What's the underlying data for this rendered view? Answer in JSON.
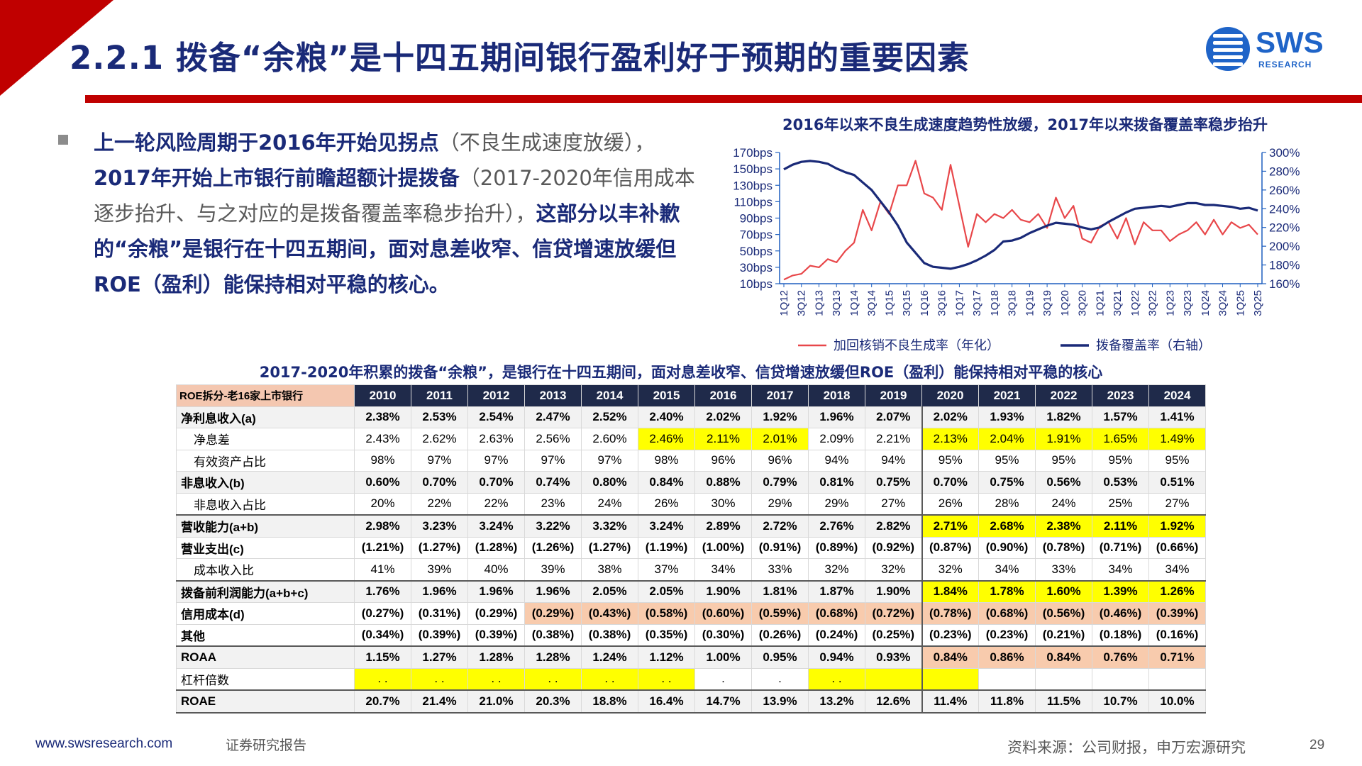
{
  "header": {
    "title": "2.2.1 拨备“余粮”是十四五期间银行盈利好于预期的重要因素",
    "logo_text": "SWS",
    "logo_sub": "RESEARCH"
  },
  "bullet": {
    "t1": "上一轮风险周期于2016年开始见拐点",
    "t2": "（不良生成速度放缓），",
    "t3": "2017年开始上市银行前瞻超额计提拨备",
    "t4": "（2017-2020年信用成本逐步抬升、与之对应的是拨备覆盖率稳步抬升），",
    "t5": "这部分以丰补歉的“余粮”是银行在十四五期间，面对息差收窄、信贷增速放缓但ROE（盈利）能保持相对平稳的核心。"
  },
  "chart_title": "2016年以来不良生成速度趋势性放缓，2017年以来拨备覆盖率稳步抬升",
  "table_title": "2017-2020年积累的拨备“余粮”，是银行在十四五期间，面对息差收窄、信贷增速放缓但ROE（盈利）能保持相对平稳的核心",
  "chart_data": {
    "type": "line",
    "x": [
      "1Q12",
      "2Q12",
      "3Q12",
      "4Q12",
      "1Q13",
      "2Q13",
      "3Q13",
      "4Q13",
      "1Q14",
      "2Q14",
      "3Q14",
      "4Q14",
      "1Q15",
      "2Q15",
      "3Q15",
      "4Q15",
      "1Q16",
      "2Q16",
      "3Q16",
      "4Q16",
      "1Q17",
      "2Q17",
      "3Q17",
      "4Q17",
      "1Q18",
      "2Q18",
      "3Q18",
      "4Q18",
      "1Q19",
      "2Q19",
      "3Q19",
      "4Q19",
      "1Q20",
      "2Q20",
      "3Q20",
      "4Q20",
      "1Q21",
      "2Q21",
      "3Q21",
      "4Q21",
      "1Q22",
      "2Q22",
      "3Q22",
      "4Q22",
      "1Q23",
      "2Q23",
      "3Q23",
      "4Q23",
      "1Q24",
      "2Q24",
      "3Q24",
      "4Q24",
      "1Q25",
      "2Q25",
      "3Q25"
    ],
    "x_tick_labels": [
      "1Q12",
      "3Q12",
      "1Q13",
      "3Q13",
      "1Q14",
      "3Q14",
      "1Q15",
      "3Q15",
      "1Q16",
      "3Q16",
      "1Q17",
      "3Q17",
      "1Q18",
      "3Q18",
      "1Q19",
      "3Q19",
      "1Q20",
      "3Q20",
      "1Q21",
      "3Q21",
      "1Q22",
      "3Q22",
      "1Q23",
      "3Q23",
      "1Q24",
      "3Q24",
      "1Q25",
      "3Q25"
    ],
    "y_left_ticks": [
      "170bps",
      "150bps",
      "130bps",
      "110bps",
      "90bps",
      "70bps",
      "50bps",
      "30bps",
      "10bps"
    ],
    "y_right_ticks": [
      "300%",
      "280%",
      "260%",
      "240%",
      "220%",
      "200%",
      "180%",
      "160%"
    ],
    "ylim_left": [
      10,
      170
    ],
    "ylim_right": [
      160,
      300
    ],
    "series": [
      {
        "name": "加回核销不良生成率（年化）",
        "axis": "left",
        "color": "#e8474a",
        "values": [
          15,
          20,
          22,
          32,
          30,
          40,
          36,
          50,
          60,
          100,
          75,
          110,
          95,
          130,
          130,
          160,
          120,
          115,
          100,
          155,
          105,
          55,
          95,
          85,
          95,
          90,
          100,
          88,
          85,
          95,
          78,
          115,
          90,
          105,
          65,
          60,
          80,
          85,
          65,
          90,
          58,
          85,
          75,
          75,
          62,
          70,
          75,
          85,
          70,
          88,
          70,
          85,
          78,
          82,
          70
        ]
      },
      {
        "name": "拨备覆盖率（右轴）",
        "axis": "right",
        "color": "#1a2a78",
        "values": [
          282,
          287,
          290,
          291,
          290,
          288,
          283,
          279,
          276,
          268,
          260,
          248,
          236,
          222,
          204,
          193,
          182,
          178,
          177,
          176,
          178,
          181,
          185,
          190,
          196,
          205,
          206,
          209,
          214,
          218,
          222,
          225,
          224,
          223,
          220,
          218,
          220,
          226,
          231,
          236,
          240,
          241,
          242,
          243,
          242,
          244,
          246,
          246,
          244,
          244,
          243,
          242,
          240,
          241,
          238
        ]
      }
    ]
  },
  "table": {
    "corner_label": "ROE拆分-老16家上市银行",
    "years": [
      "2010",
      "2011",
      "2012",
      "2013",
      "2014",
      "2015",
      "2016",
      "2017",
      "2018",
      "2019",
      "2020",
      "2021",
      "2022",
      "2023",
      "2024"
    ],
    "rows": [
      {
        "label": "净利息收入(a)",
        "values": [
          "2.38%",
          "2.53%",
          "2.54%",
          "2.47%",
          "2.52%",
          "2.40%",
          "2.02%",
          "1.92%",
          "1.96%",
          "2.07%",
          "2.02%",
          "1.93%",
          "1.82%",
          "1.57%",
          "1.41%"
        ]
      },
      {
        "label": "净息差",
        "values": [
          "2.43%",
          "2.62%",
          "2.63%",
          "2.56%",
          "2.60%",
          "2.46%",
          "2.11%",
          "2.01%",
          "2.09%",
          "2.21%",
          "2.13%",
          "2.04%",
          "1.91%",
          "1.65%",
          "1.49%"
        ]
      },
      {
        "label": "有效资产占比",
        "values": [
          "98%",
          "97%",
          "97%",
          "97%",
          "97%",
          "98%",
          "96%",
          "96%",
          "94%",
          "94%",
          "95%",
          "95%",
          "95%",
          "95%",
          "95%"
        ]
      },
      {
        "label": "非息收入(b)",
        "values": [
          "0.60%",
          "0.70%",
          "0.70%",
          "0.74%",
          "0.80%",
          "0.84%",
          "0.88%",
          "0.79%",
          "0.81%",
          "0.75%",
          "0.70%",
          "0.75%",
          "0.56%",
          "0.53%",
          "0.51%"
        ]
      },
      {
        "label": "非息收入占比",
        "values": [
          "20%",
          "22%",
          "22%",
          "23%",
          "24%",
          "26%",
          "30%",
          "29%",
          "29%",
          "27%",
          "26%",
          "28%",
          "24%",
          "25%",
          "27%"
        ]
      },
      {
        "label": "营收能力(a+b)",
        "values": [
          "2.98%",
          "3.23%",
          "3.24%",
          "3.22%",
          "3.32%",
          "3.24%",
          "2.89%",
          "2.72%",
          "2.76%",
          "2.82%",
          "2.71%",
          "2.68%",
          "2.38%",
          "2.11%",
          "1.92%"
        ]
      },
      {
        "label": "营业支出(c)",
        "values": [
          "(1.21%)",
          "(1.27%)",
          "(1.28%)",
          "(1.26%)",
          "(1.27%)",
          "(1.19%)",
          "(1.00%)",
          "(0.91%)",
          "(0.89%)",
          "(0.92%)",
          "(0.87%)",
          "(0.90%)",
          "(0.78%)",
          "(0.71%)",
          "(0.66%)"
        ]
      },
      {
        "label": "成本收入比",
        "values": [
          "41%",
          "39%",
          "40%",
          "39%",
          "38%",
          "37%",
          "34%",
          "33%",
          "32%",
          "32%",
          "32%",
          "34%",
          "33%",
          "34%",
          "34%"
        ]
      },
      {
        "label": "拨备前利润能力(a+b+c)",
        "values": [
          "1.76%",
          "1.96%",
          "1.96%",
          "1.96%",
          "2.05%",
          "2.05%",
          "1.90%",
          "1.81%",
          "1.87%",
          "1.90%",
          "1.84%",
          "1.78%",
          "1.60%",
          "1.39%",
          "1.26%"
        ]
      },
      {
        "label": "信用成本(d)",
        "values": [
          "(0.27%)",
          "(0.31%)",
          "(0.29%)",
          "(0.29%)",
          "(0.43%)",
          "(0.58%)",
          "(0.60%)",
          "(0.59%)",
          "(0.68%)",
          "(0.72%)",
          "(0.78%)",
          "(0.68%)",
          "(0.56%)",
          "(0.46%)",
          "(0.39%)"
        ]
      },
      {
        "label": "其他",
        "values": [
          "(0.34%)",
          "(0.39%)",
          "(0.39%)",
          "(0.38%)",
          "(0.38%)",
          "(0.35%)",
          "(0.30%)",
          "(0.26%)",
          "(0.24%)",
          "(0.25%)",
          "(0.23%)",
          "(0.23%)",
          "(0.21%)",
          "(0.18%)",
          "(0.16%)"
        ]
      },
      {
        "label": "ROAA",
        "values": [
          "1.15%",
          "1.27%",
          "1.28%",
          "1.28%",
          "1.24%",
          "1.12%",
          "1.00%",
          "0.95%",
          "0.94%",
          "0.93%",
          "0.84%",
          "0.86%",
          "0.84%",
          "0.76%",
          "0.71%"
        ]
      },
      {
        "label": "杠杆倍数",
        "values": [
          ". .",
          ". .",
          ". .",
          ". .",
          ". .",
          ". .",
          ".",
          ".",
          ". .",
          "",
          "",
          "",
          "",
          "",
          ""
        ]
      },
      {
        "label": "ROAE",
        "values": [
          "20.7%",
          "21.4%",
          "21.0%",
          "20.3%",
          "18.8%",
          "16.4%",
          "14.7%",
          "13.9%",
          "13.2%",
          "12.6%",
          "11.4%",
          "11.8%",
          "11.5%",
          "10.7%",
          "10.0%"
        ]
      }
    ]
  },
  "footer": {
    "url": "www.swsresearch.com",
    "report": "证券研究报告",
    "source": "资料来源：公司财报，申万宏源研究",
    "page": "29"
  },
  "colors": {
    "navy": "#1a2a78",
    "red": "#c00000",
    "highlight_yellow": "#ffff00",
    "highlight_orange": "#f8cbad"
  }
}
